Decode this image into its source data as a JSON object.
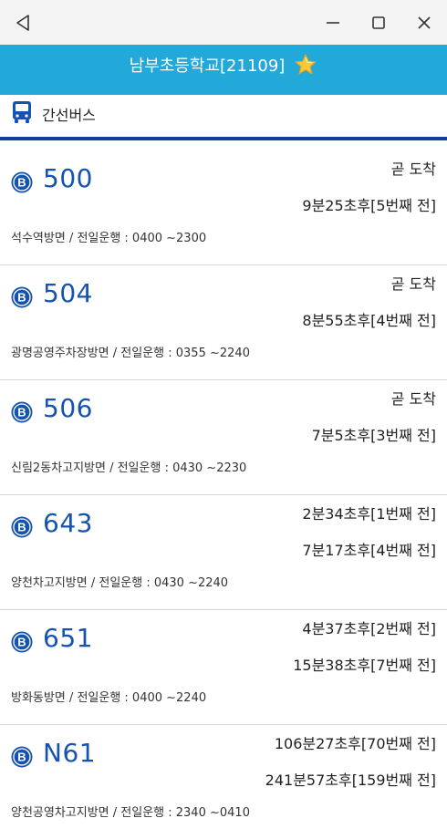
{
  "titlebar": {
    "back_icon": "back-triangle-icon",
    "minimize_icon": "minimize-icon",
    "maximize_icon": "maximize-icon",
    "close_icon": "close-icon"
  },
  "header": {
    "title": "남부초등학교[21109]",
    "favorite_icon": "star-icon"
  },
  "category": {
    "icon": "bus-icon",
    "label": "간선버스",
    "accent": "#0f3f99"
  },
  "colors": {
    "header_bg": "#23a8da",
    "route_text": "#1553ae",
    "badge": "#1553ae"
  },
  "buses": [
    {
      "route": "500",
      "arrival1": "곧 도착",
      "arrival2": "9분25초후[5번째 전]",
      "info": "석수역방면 / 전일운행 : 0400 ~2300"
    },
    {
      "route": "504",
      "arrival1": "곧 도착",
      "arrival2": "8분55초후[4번째 전]",
      "info": "광명공영주차장방면 / 전일운행 : 0355 ~2240"
    },
    {
      "route": "506",
      "arrival1": "곧 도착",
      "arrival2": "7분5초후[3번째 전]",
      "info": "신림2동차고지방면 / 전일운행 : 0430 ~2230"
    },
    {
      "route": "643",
      "arrival1": "2분34초후[1번째 전]",
      "arrival2": "7분17초후[4번째 전]",
      "info": "양천차고지방면 / 전일운행 : 0430 ~2240"
    },
    {
      "route": "651",
      "arrival1": "4분37초후[2번째 전]",
      "arrival2": "15분38초후[7번째 전]",
      "info": "방화동방면 / 전일운행 : 0400 ~2240"
    },
    {
      "route": "N61",
      "arrival1": "106분27초후[70번째 전]",
      "arrival2": "241분57초후[159번째 전]",
      "info": "양천공영차고지방면 / 전일운행 : 2340 ~0410"
    }
  ]
}
